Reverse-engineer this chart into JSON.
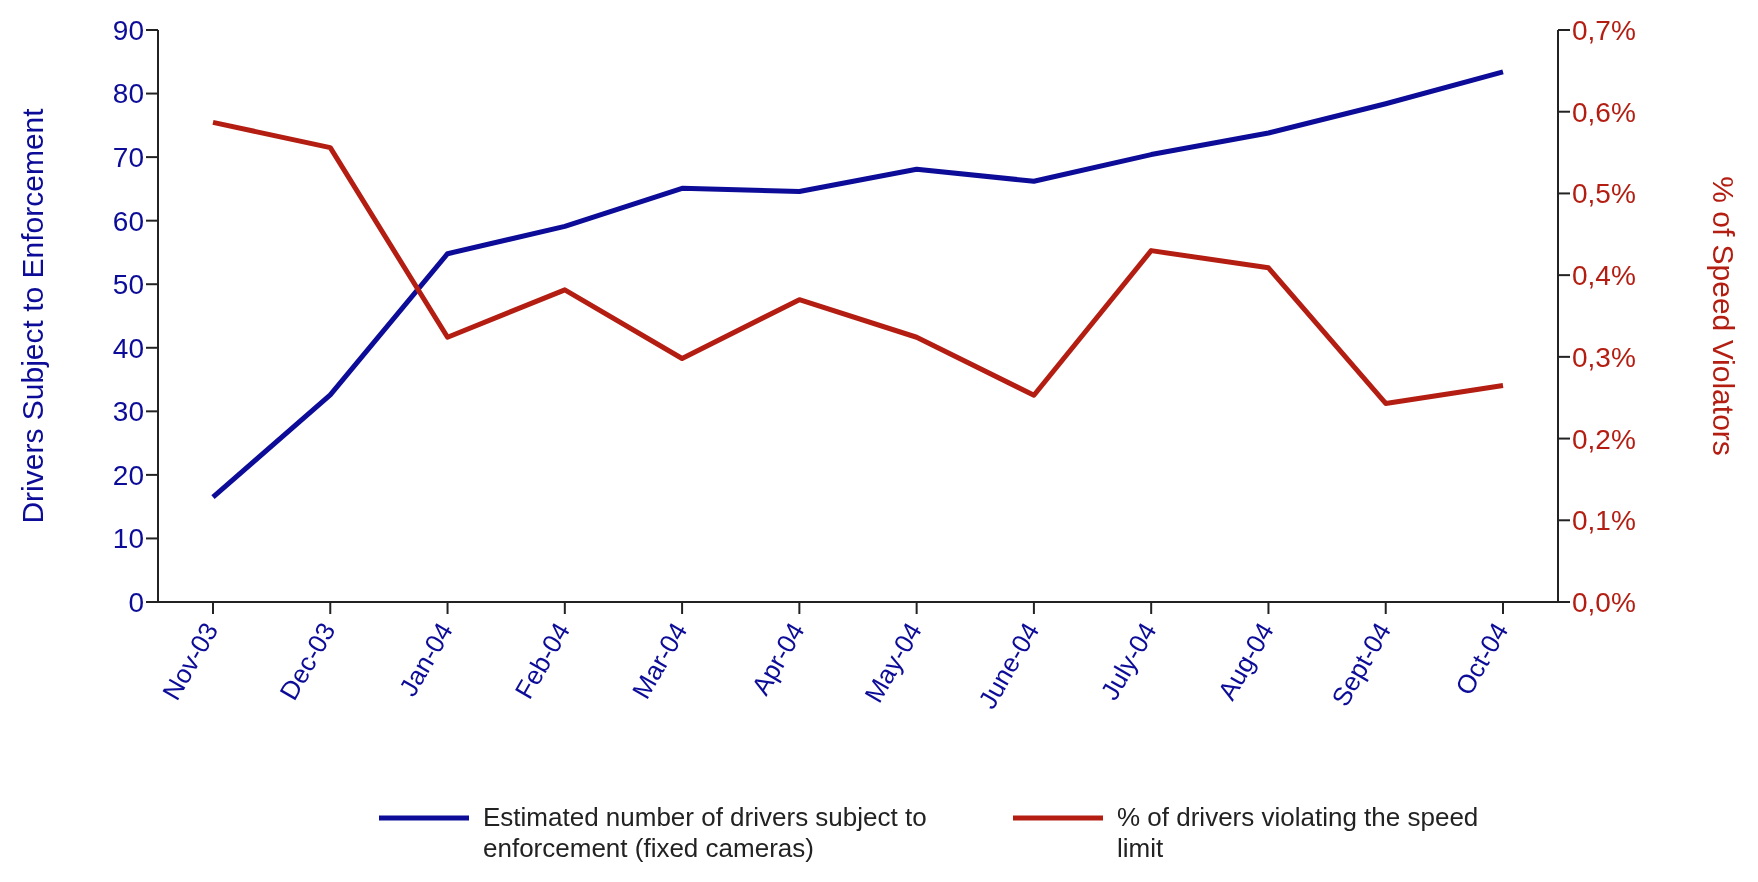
{
  "chart_data": {
    "type": "line",
    "ylabel": "Drivers Subject to Enforcement",
    "y2label": "% of Speed Violators",
    "categories": [
      "Nov-03",
      "Dec-03",
      "Jan-04",
      "Feb-04",
      "Mar-04",
      "Apr-04",
      "May-04",
      "June-04",
      "July-04",
      "Aug-04",
      "Sept-04",
      "Oct-04"
    ],
    "series": [
      {
        "name": "Estimated number of drivers subject to enforcement (fixed cameras)",
        "color": "#0c0c98",
        "values": [
          16.5,
          32.6,
          54.8,
          59.1,
          65.1,
          64.6,
          68.1,
          66.2,
          70.4,
          73.8,
          78.4,
          83.4
        ]
      },
      {
        "name": "% of drivers violating the speed limit",
        "color": "#b41e12",
        "axis": "y2",
        "values": [
          0.587,
          0.556,
          0.324,
          0.382,
          0.298,
          0.37,
          0.324,
          0.253,
          0.43,
          0.409,
          0.243,
          0.265
        ]
      }
    ],
    "ylim": [
      0,
      90
    ],
    "yticks": [
      0,
      10,
      20,
      30,
      40,
      50,
      60,
      70,
      80,
      90
    ],
    "y2lim": [
      0,
      0.7
    ],
    "y2ticks": [
      {
        "value": 0,
        "label": "0,0%"
      },
      {
        "value": 0.1,
        "label": "0,1%"
      },
      {
        "value": 0.2,
        "label": "0,2%"
      },
      {
        "value": 0.3,
        "label": "0,3%"
      },
      {
        "value": 0.4,
        "label": "0,4%"
      },
      {
        "value": 0.5,
        "label": "0,5%"
      },
      {
        "value": 0.6,
        "label": "0,6%"
      },
      {
        "value": 0.7,
        "label": "0,7%"
      }
    ],
    "grid": false,
    "legend": "bottom",
    "marker": "none",
    "line_style": "solid"
  }
}
